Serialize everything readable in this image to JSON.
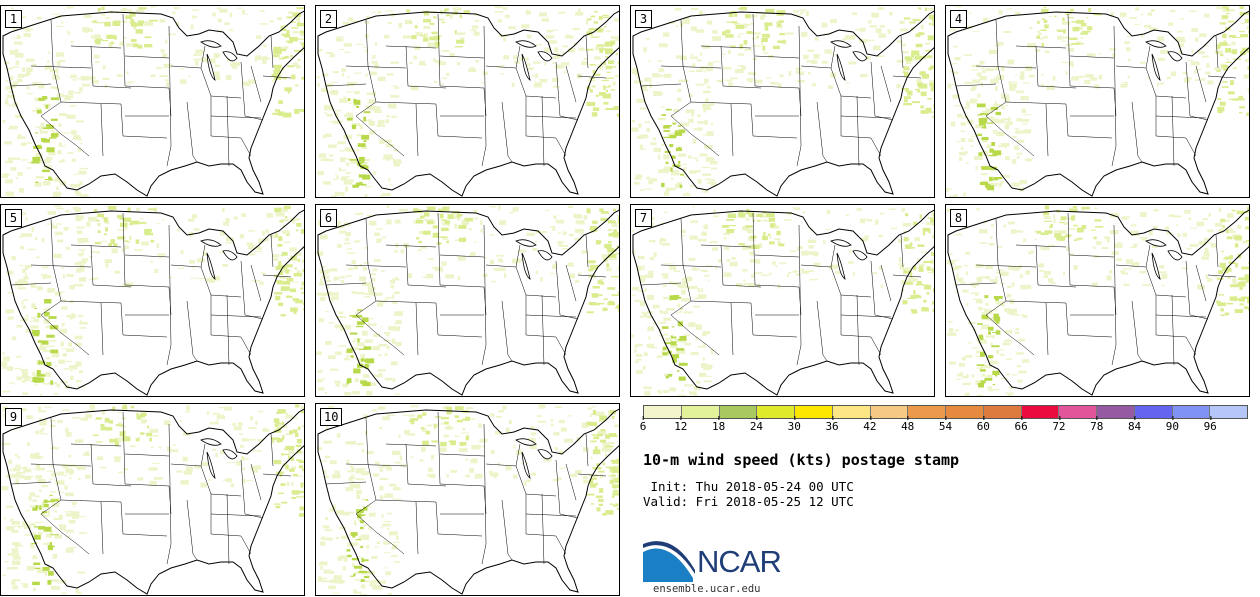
{
  "panels": [
    {
      "label": "1"
    },
    {
      "label": "2"
    },
    {
      "label": "3"
    },
    {
      "label": "4"
    },
    {
      "label": "5"
    },
    {
      "label": "6"
    },
    {
      "label": "7"
    },
    {
      "label": "8"
    },
    {
      "label": "9"
    },
    {
      "label": "10"
    }
  ],
  "colorbar": {
    "colors": [
      "#f2f5cb",
      "#e2f29b",
      "#a7c95e",
      "#dfea2a",
      "#fde600",
      "#fde784",
      "#f7ca84",
      "#eb9a4b",
      "#e58a3e",
      "#dd7a3d",
      "#ec0b3e",
      "#e3559b",
      "#965aa3",
      "#6464f0",
      "#8093f5",
      "#b5c7f9"
    ],
    "ticks": [
      "6",
      "12",
      "18",
      "24",
      "30",
      "36",
      "42",
      "48",
      "54",
      "60",
      "66",
      "72",
      "78",
      "84",
      "90",
      "96"
    ]
  },
  "title": "10-m wind speed (kts) postage stamp",
  "init": " Init: Thu 2018-05-24 00 UTC",
  "valid": "Valid: Fri 2018-05-25 12 UTC",
  "logo": {
    "text": "NCAR",
    "url": "ensemble.ucar.edu"
  },
  "colors": {
    "light_wind": "#eef4c9",
    "moderate_wind": "#d9ec8e",
    "strong_wind": "#b7d94a"
  }
}
